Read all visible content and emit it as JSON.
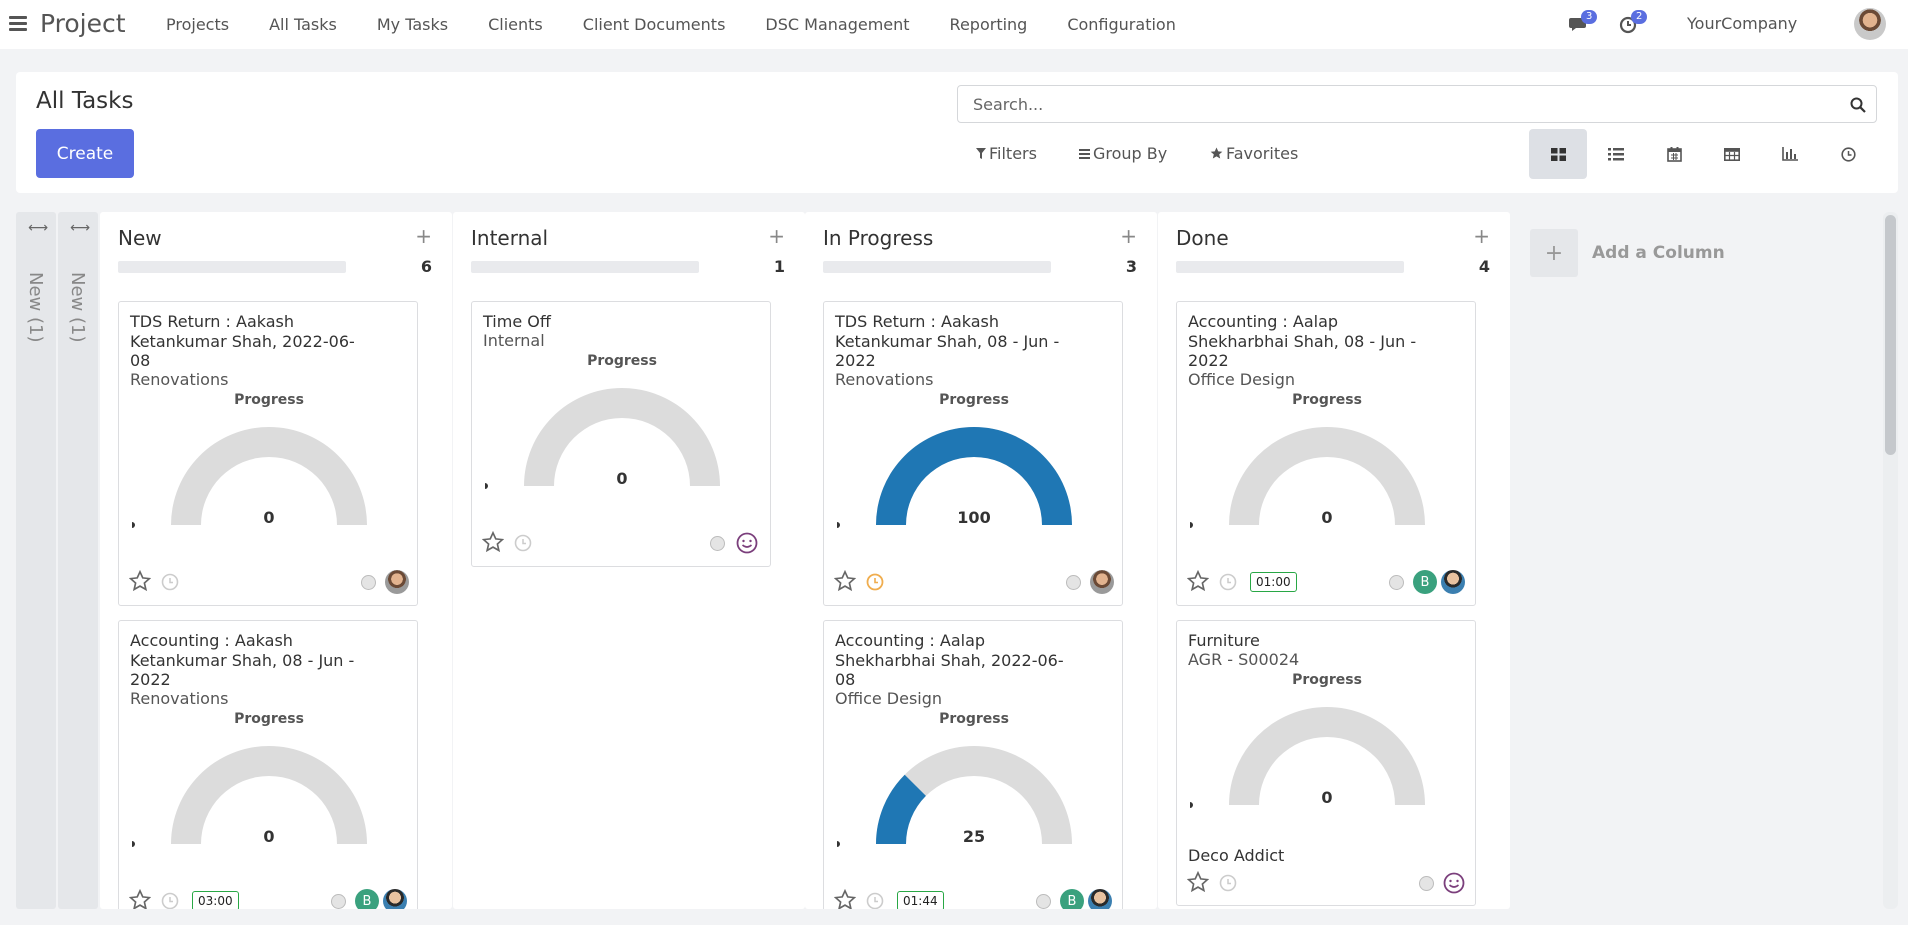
{
  "nav": {
    "brand": "Project",
    "menu": [
      "Projects",
      "All Tasks",
      "My Tasks",
      "Clients",
      "Client Documents",
      "DSC Management",
      "Reporting",
      "Configuration"
    ],
    "messages_count": "3",
    "activities_count": "2",
    "company": "YourCompany"
  },
  "panel": {
    "title": "All Tasks",
    "create_label": "Create",
    "search_placeholder": "Search...",
    "filters_label": "Filters",
    "groupby_label": "Group By",
    "favorites_label": "Favorites",
    "views": [
      "kanban",
      "list",
      "calendar",
      "pivot",
      "graph",
      "activity"
    ],
    "active_view": "kanban"
  },
  "folded_columns": [
    {
      "label": "New (1)"
    },
    {
      "label": "New (1)"
    }
  ],
  "gauge_label": "Progress",
  "columns": [
    {
      "title": "New",
      "count": "6",
      "cards": [
        {
          "title": "TDS Return : Aakash Ketankumar Shah, 2022-06-08",
          "subtitle": "Renovations",
          "progress": 0,
          "timer": "",
          "avatars": [
            "photo"
          ],
          "partner": ""
        },
        {
          "title": "Accounting : Aakash Ketankumar Shah, 08 - Jun - 2022",
          "subtitle": "Renovations",
          "progress": 0,
          "timer": "03:00",
          "avatars": [
            "B",
            "photo2"
          ],
          "partner": ""
        }
      ]
    },
    {
      "title": "Internal",
      "count": "1",
      "cards": [
        {
          "title": "Time Off",
          "subtitle": "Internal",
          "progress": 0,
          "timer": "",
          "avatars": [
            "smiley"
          ],
          "partner": ""
        }
      ]
    },
    {
      "title": "In Progress",
      "count": "3",
      "cards": [
        {
          "title": "TDS Return : Aakash Ketankumar Shah, 08 - Jun - 2022",
          "subtitle": "Renovations",
          "progress": 100,
          "timer": "",
          "avatars": [
            "photo"
          ],
          "partner": "",
          "clock_active": true
        },
        {
          "title": "Accounting : Aalap Shekharbhai Shah, 2022-06-08",
          "subtitle": "Office Design",
          "progress": 25,
          "timer": "01:44",
          "avatars": [
            "B",
            "photo2"
          ],
          "partner": ""
        }
      ]
    },
    {
      "title": "Done",
      "count": "4",
      "cards": [
        {
          "title": "Accounting : Aalap Shekharbhai Shah, 08 - Jun - 2022",
          "subtitle": "Office Design",
          "progress": 0,
          "timer": "01:00",
          "avatars": [
            "B",
            "photo2"
          ],
          "partner": ""
        },
        {
          "title": "Furniture",
          "subtitle": "AGR - S00024",
          "progress": 0,
          "timer": "",
          "avatars": [
            "smiley"
          ],
          "partner": "Deco Addict"
        }
      ]
    }
  ],
  "add_column_label": "Add a Column",
  "colors": {
    "accent": "#5a6ee0",
    "gauge_fill": "#1f77b4",
    "gauge_bg": "#dcdcdc",
    "timer_border": "#28a745",
    "avatar_b": "#3aa17e"
  }
}
